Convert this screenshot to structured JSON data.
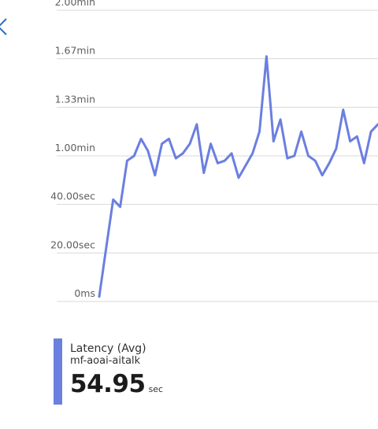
{
  "chart_data": {
    "type": "line",
    "title": "",
    "xlabel": "",
    "ylabel": "",
    "y_unit": "seconds",
    "ylim": [
      0,
      120
    ],
    "grid": true,
    "y_ticks": [
      {
        "value": 120,
        "label": "2.00min"
      },
      {
        "value": 100,
        "label": "1.67min"
      },
      {
        "value": 80,
        "label": "1.33min"
      },
      {
        "value": 60,
        "label": "1.00min"
      },
      {
        "value": 40,
        "label": "40.00sec"
      },
      {
        "value": 20,
        "label": "20.00sec"
      },
      {
        "value": 0,
        "label": "0ms"
      }
    ],
    "series": [
      {
        "name": "Latency (Avg)",
        "color": "#6b7fe0",
        "values": [
          2,
          22,
          42,
          39,
          58,
          60,
          67,
          62,
          52,
          65,
          67,
          59,
          61,
          65,
          73,
          53,
          65,
          57,
          58,
          61,
          51,
          56,
          61,
          70,
          101,
          66,
          75,
          59,
          60,
          70,
          60,
          58,
          52,
          57,
          63,
          79,
          66,
          68,
          57,
          70,
          73
        ]
      }
    ]
  },
  "legend": {
    "metric": "Latency (Avg)",
    "resource": "mf-aoai-aitalk",
    "value": "54.95",
    "unit": "sec",
    "color": "#6b7fe0"
  },
  "nav": {
    "icon": "chevron-left-icon",
    "color": "#2b6cc4"
  }
}
